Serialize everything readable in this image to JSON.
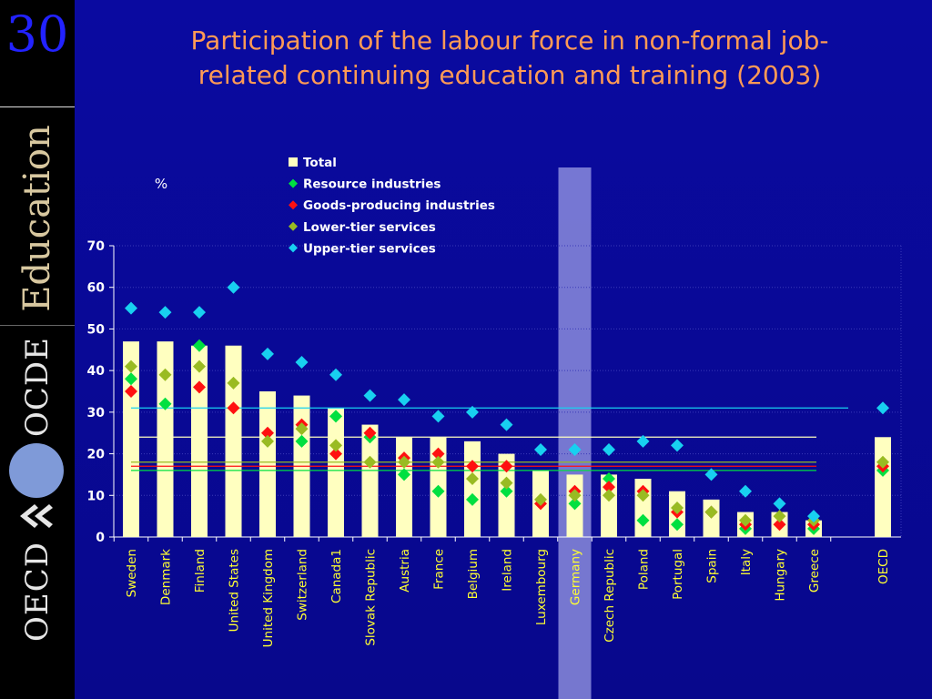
{
  "slide": {
    "number": "30",
    "side_brand_education": "Education",
    "side_brand_ocde": "OCDE",
    "side_brand_oecd": "OECD",
    "title_line1": "Participation of the labour force in non-formal job-",
    "title_line2": "related continuing education and training (2003)"
  },
  "colors": {
    "background": "#0a0aa0",
    "title": "#ff9a55",
    "bar_total": "#ffffc0",
    "resource": "#00e040",
    "goods": "#ff1010",
    "lower_tier": "#99bb22",
    "upper_tier": "#18d0f0",
    "highlight_band": "#9b9ce6",
    "category_label": "#ffff33",
    "axis_text": "#ffffff"
  },
  "chart_data": {
    "type": "bar",
    "ylabel": "%",
    "ylim": [
      0,
      70
    ],
    "yticks": [
      0,
      10,
      20,
      30,
      40,
      50,
      60,
      70
    ],
    "grid": true,
    "legend_position": "top",
    "highlighted_category": "Germany",
    "categories": [
      "Sweden",
      "Denmark",
      "Finland",
      "United States",
      "United Kingdom",
      "Switzerland",
      "Canada1",
      "Slovak Republic",
      "Austria",
      "France",
      "Belgium",
      "Ireland",
      "Luxembourg",
      "Germany",
      "Czech Republic",
      "Poland",
      "Portugal",
      "Spain",
      "Italy",
      "Hungary",
      "Greece",
      "OECD"
    ],
    "series": [
      {
        "name": "Total",
        "kind": "bar",
        "color_key": "bar_total",
        "values": [
          47,
          47,
          46,
          46,
          35,
          34,
          31,
          27,
          24,
          24,
          23,
          20,
          16,
          15,
          15,
          14,
          11,
          9,
          6,
          6,
          4,
          24
        ]
      },
      {
        "name": "Resource industries",
        "kind": "marker",
        "color_key": "resource",
        "values": [
          38,
          32,
          46,
          null,
          null,
          23,
          29,
          24,
          15,
          11,
          9,
          11,
          null,
          8,
          14,
          4,
          3,
          6,
          2,
          null,
          2,
          16
        ]
      },
      {
        "name": "Goods-producing industries",
        "kind": "marker",
        "color_key": "goods",
        "values": [
          35,
          null,
          36,
          31,
          25,
          27,
          20,
          25,
          19,
          20,
          17,
          17,
          8,
          11,
          12,
          11,
          6,
          6,
          3,
          3,
          3,
          17
        ]
      },
      {
        "name": "Lower-tier services",
        "kind": "marker",
        "color_key": "lower_tier",
        "values": [
          41,
          39,
          41,
          37,
          23,
          26,
          22,
          18,
          18,
          18,
          14,
          13,
          9,
          10,
          10,
          10,
          7,
          6,
          4,
          5,
          4,
          18
        ]
      },
      {
        "name": "Upper-tier services",
        "kind": "marker",
        "color_key": "upper_tier",
        "values": [
          55,
          54,
          54,
          60,
          44,
          42,
          39,
          34,
          33,
          29,
          30,
          27,
          21,
          21,
          21,
          23,
          22,
          15,
          11,
          8,
          5,
          31
        ]
      }
    ],
    "reference_lines": [
      {
        "series": "Upper-tier services",
        "value": 31,
        "color_key": "upper_tier"
      },
      {
        "series": "Total",
        "value": 24,
        "color_key": "bar_total"
      },
      {
        "series": "Goods-producing industries",
        "value": 17,
        "color_key": "goods"
      },
      {
        "series": "Lower-tier services",
        "value": 18,
        "color_key": "lower_tier"
      },
      {
        "series": "Resource industries",
        "value": 16,
        "color_key": "resource"
      }
    ]
  }
}
